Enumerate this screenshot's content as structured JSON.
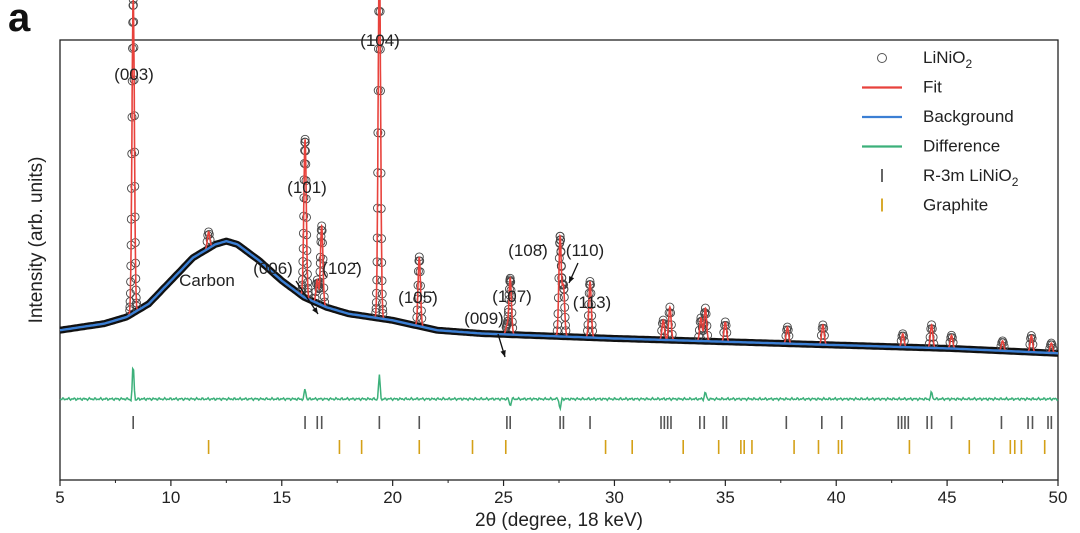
{
  "panel_label": "a",
  "chart_data": {
    "type": "line",
    "title": "",
    "xlabel": "2θ  (degree, 18 keV)",
    "ylabel": "Intensity  (arb. units)",
    "xlim": [
      5,
      50
    ],
    "xticks": [
      5,
      10,
      15,
      20,
      25,
      30,
      35,
      40,
      45,
      50
    ],
    "yticks": [],
    "sample": "LiNiO2",
    "background_points": [
      [
        5,
        0.16
      ],
      [
        6,
        0.17
      ],
      [
        7,
        0.18
      ],
      [
        8,
        0.2
      ],
      [
        9,
        0.24
      ],
      [
        10,
        0.31
      ],
      [
        11,
        0.38
      ],
      [
        12,
        0.42
      ],
      [
        12.5,
        0.43
      ],
      [
        13,
        0.42
      ],
      [
        14,
        0.37
      ],
      [
        15,
        0.31
      ],
      [
        16,
        0.26
      ],
      [
        17,
        0.23
      ],
      [
        18,
        0.21
      ],
      [
        19,
        0.2
      ],
      [
        20,
        0.19
      ],
      [
        21,
        0.175
      ],
      [
        22,
        0.16
      ],
      [
        24,
        0.15
      ],
      [
        26,
        0.145
      ],
      [
        28,
        0.14
      ],
      [
        30,
        0.135
      ],
      [
        35,
        0.125
      ],
      [
        40,
        0.115
      ],
      [
        45,
        0.105
      ],
      [
        50,
        0.09
      ]
    ],
    "peaks": [
      {
        "x": 8.3,
        "height": 0.95,
        "label": "(003)"
      },
      {
        "x": 11.7,
        "height": 0.05,
        "label": "Carbon"
      },
      {
        "x": 16.05,
        "height": 0.48,
        "label": "(101)"
      },
      {
        "x": 16.6,
        "height": 0.07,
        "label": "(006)"
      },
      {
        "x": 16.8,
        "height": 0.24,
        "label": "(102̄)"
      },
      {
        "x": 19.4,
        "height": 1.1,
        "label": "(104)"
      },
      {
        "x": 21.2,
        "height": 0.21,
        "label": "(105̄)"
      },
      {
        "x": 25.15,
        "height": 0.025,
        "label": "(009)"
      },
      {
        "x": 25.3,
        "height": 0.17,
        "label": "(107)"
      },
      {
        "x": 27.55,
        "height": 0.3,
        "label": "(108̄)"
      },
      {
        "x": 27.7,
        "height": 0.15,
        "label": "(110)"
      },
      {
        "x": 28.9,
        "height": 0.17,
        "label": "(113)"
      },
      {
        "x": 32.2,
        "height": 0.06,
        "label": ""
      },
      {
        "x": 32.5,
        "height": 0.1,
        "label": ""
      },
      {
        "x": 33.9,
        "height": 0.07,
        "label": ""
      },
      {
        "x": 34.1,
        "height": 0.1,
        "label": ""
      },
      {
        "x": 35.0,
        "height": 0.06,
        "label": ""
      },
      {
        "x": 37.8,
        "height": 0.05,
        "label": ""
      },
      {
        "x": 39.4,
        "height": 0.06,
        "label": ""
      },
      {
        "x": 43.0,
        "height": 0.04,
        "label": ""
      },
      {
        "x": 44.3,
        "height": 0.07,
        "label": ""
      },
      {
        "x": 45.2,
        "height": 0.04,
        "label": ""
      },
      {
        "x": 47.5,
        "height": 0.03,
        "label": ""
      },
      {
        "x": 48.8,
        "height": 0.05,
        "label": ""
      },
      {
        "x": 49.7,
        "height": 0.03,
        "label": ""
      }
    ],
    "difference_spikes": [
      {
        "x": 8.3,
        "amp": 0.1
      },
      {
        "x": 16.05,
        "amp": 0.03
      },
      {
        "x": 19.4,
        "amp": 0.07
      },
      {
        "x": 25.3,
        "amp": -0.02
      },
      {
        "x": 27.55,
        "amp": -0.03
      },
      {
        "x": 34.1,
        "amp": 0.02
      },
      {
        "x": 44.3,
        "amp": 0.02
      }
    ],
    "reflections_LiNiO2": [
      8.3,
      16.05,
      16.6,
      16.8,
      19.4,
      21.2,
      25.15,
      25.3,
      27.55,
      27.7,
      28.9,
      32.1,
      32.25,
      32.4,
      32.55,
      33.85,
      34.05,
      34.9,
      35.05,
      37.75,
      39.35,
      40.25,
      42.8,
      42.95,
      43.1,
      43.25,
      44.1,
      44.3,
      45.2,
      47.45,
      48.65,
      48.85,
      49.55,
      49.7
    ],
    "reflections_Graphite": [
      11.7,
      17.6,
      18.6,
      21.2,
      23.6,
      25.1,
      29.6,
      30.8,
      33.1,
      34.7,
      35.7,
      35.85,
      36.2,
      38.1,
      39.2,
      40.1,
      40.25,
      43.3,
      46.0,
      47.1,
      47.85,
      48.05,
      48.35,
      49.4
    ],
    "legend": [
      {
        "name": "LiNiO",
        "subscript": "2",
        "kind": "circle",
        "color": "#555555"
      },
      {
        "name": "Fit",
        "subscript": "",
        "kind": "line",
        "color": "#e8423c"
      },
      {
        "name": "Background",
        "subscript": "",
        "kind": "line",
        "color": "#3b7fd4"
      },
      {
        "name": "Difference",
        "subscript": "",
        "kind": "line",
        "color": "#3cb07a"
      },
      {
        "name": "R-3m LiNiO",
        "subscript": "2",
        "kind": "tick",
        "color": "#555555"
      },
      {
        "name": "Graphite",
        "subscript": "",
        "kind": "tick",
        "color": "#d4a017"
      }
    ],
    "legend_position": "top-right"
  }
}
